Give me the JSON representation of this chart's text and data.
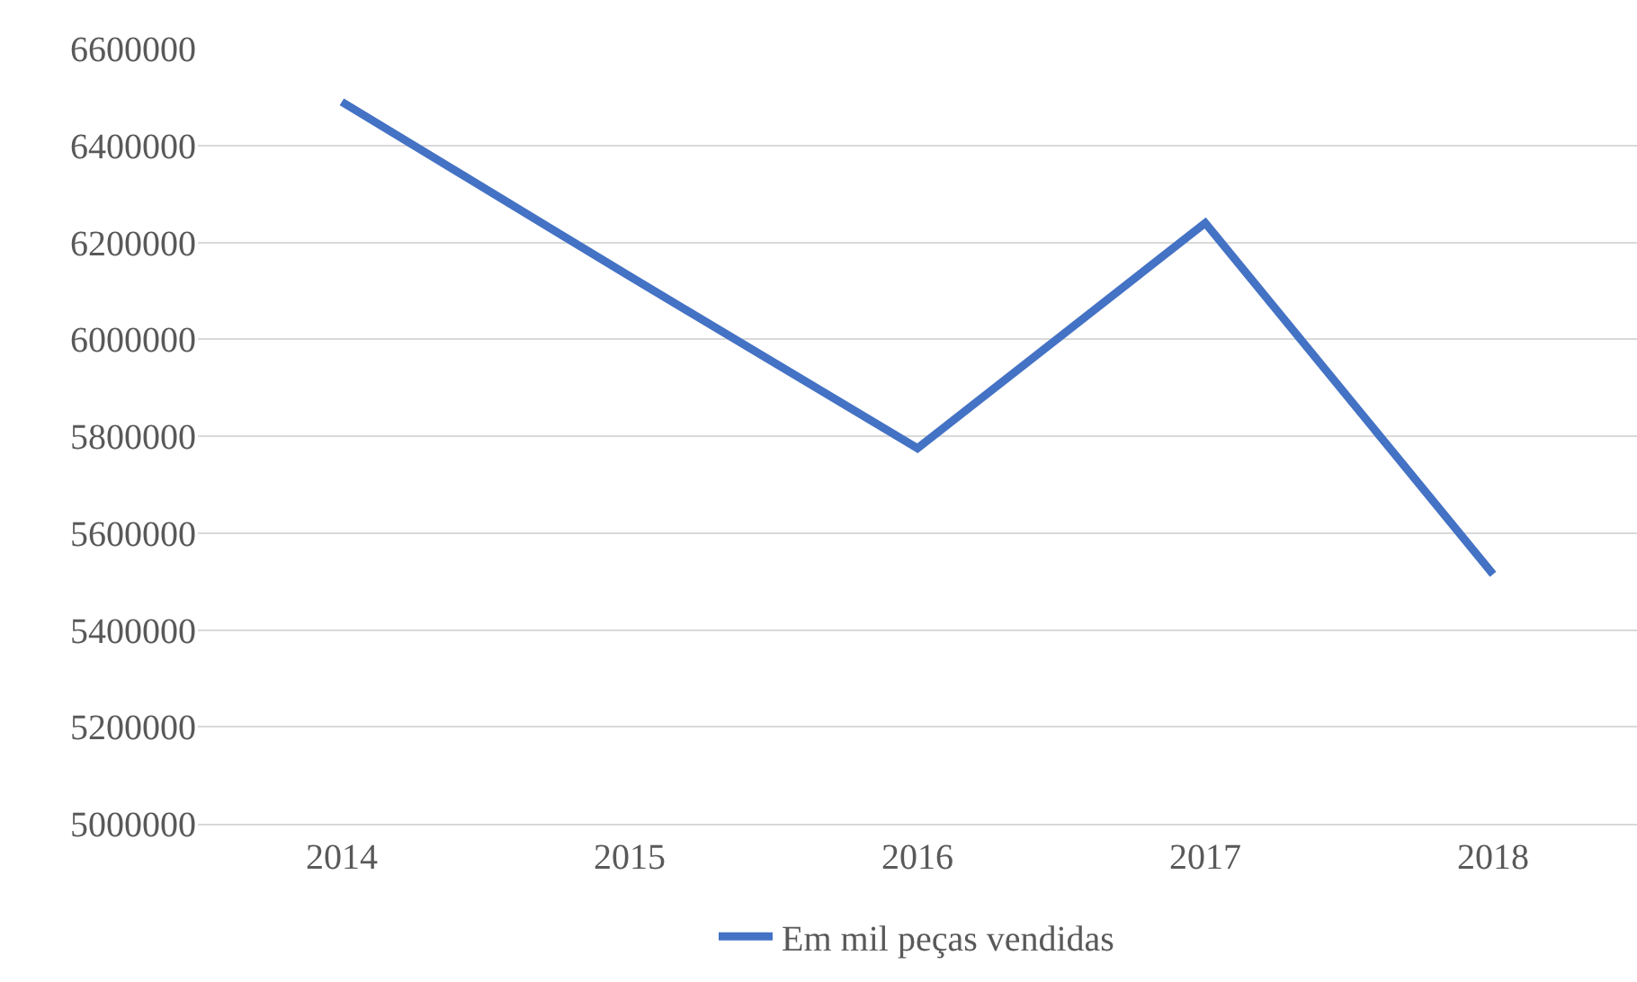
{
  "chart_data": {
    "type": "line",
    "categories": [
      "2014",
      "2015",
      "2016",
      "2017",
      "2018"
    ],
    "series": [
      {
        "name": "Em mil peças vendidas",
        "color": "#4472c4",
        "values": [
          6490000,
          6130000,
          5775000,
          6240000,
          5515000
        ]
      }
    ],
    "ylim": [
      5000000,
      6600000
    ],
    "yticks": [
      5000000,
      5200000,
      5400000,
      5600000,
      5800000,
      6000000,
      6200000,
      6400000,
      6600000
    ],
    "grid": "y",
    "legend": "bottom",
    "marker": "none",
    "line_style": "solid"
  }
}
